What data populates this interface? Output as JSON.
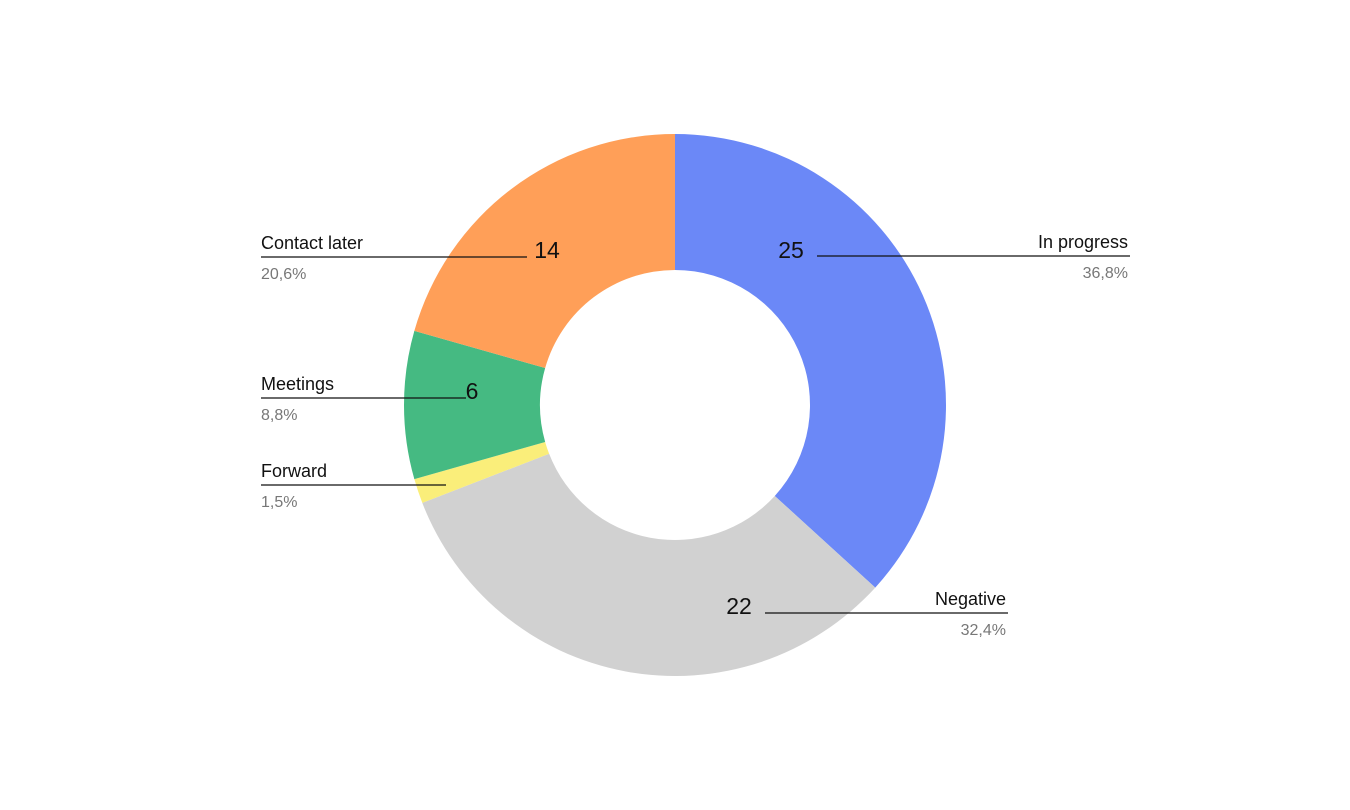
{
  "chart_data": {
    "type": "pie",
    "variant": "donut",
    "title": "",
    "slices": [
      {
        "key": "in-progress",
        "label": "In progress",
        "value": 25,
        "percent_label": "36,8%",
        "color": "#6B88F7",
        "label_side": "right"
      },
      {
        "key": "negative",
        "label": "Negative",
        "value": 22,
        "percent_label": "32,4%",
        "color": "#D1D1D1",
        "label_side": "right"
      },
      {
        "key": "forward",
        "label": "Forward",
        "value": 1,
        "percent_label": "1,5%",
        "color": "#FAEE7A",
        "label_side": "left"
      },
      {
        "key": "meetings",
        "label": "Meetings",
        "value": 6,
        "percent_label": "8,8%",
        "color": "#45BA82",
        "label_side": "left"
      },
      {
        "key": "contact-later",
        "label": "Contact later",
        "value": 14,
        "percent_label": "20,6%",
        "color": "#FF9F58",
        "label_side": "left"
      }
    ],
    "start_angle": "12 o'clock",
    "direction": "clockwise",
    "legend": "none"
  }
}
